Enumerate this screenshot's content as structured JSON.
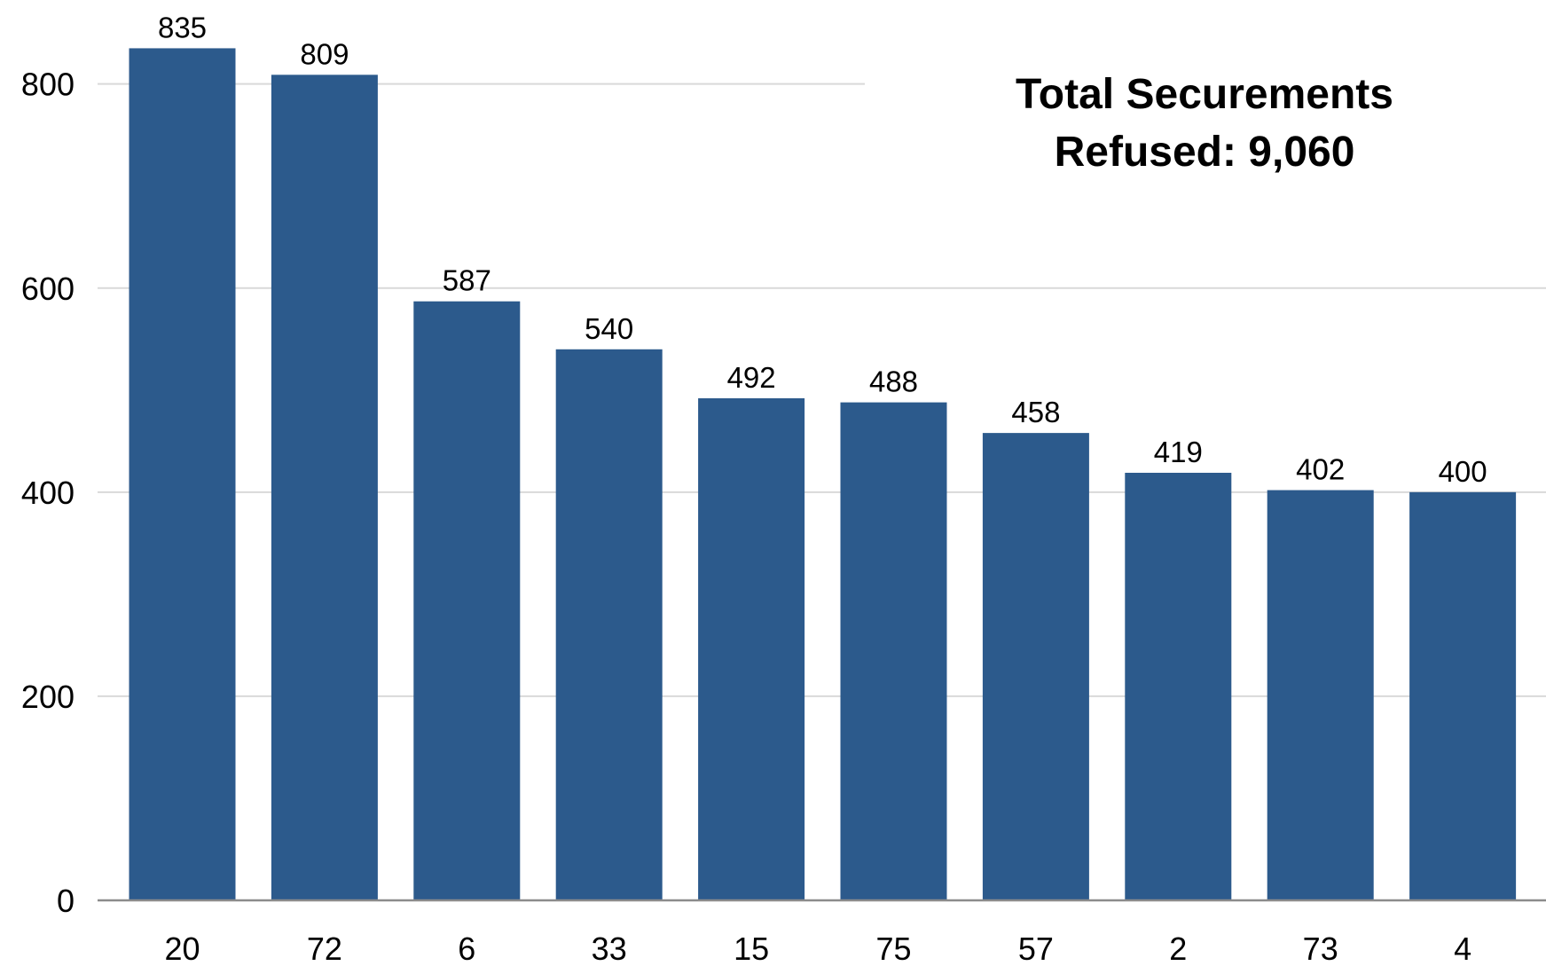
{
  "chart_data": {
    "type": "bar",
    "title": "",
    "xlabel": "",
    "ylabel": "",
    "categories": [
      "20",
      "72",
      "6",
      "33",
      "15",
      "75",
      "57",
      "2",
      "73",
      "4"
    ],
    "values": [
      835,
      809,
      587,
      540,
      492,
      488,
      458,
      419,
      402,
      400
    ],
    "data_labels": [
      "835",
      "809",
      "587",
      "540",
      "492",
      "488",
      "458",
      "419",
      "402",
      "400"
    ],
    "ylim": [
      0,
      900
    ],
    "yticks": [
      0,
      200,
      400,
      600,
      800
    ],
    "ytick_labels": [
      "0",
      "200",
      "400",
      "600",
      "800"
    ],
    "grid": true,
    "legend": "none",
    "annotation": {
      "line1": "Total Securements",
      "line2": "Refused: 9,060"
    },
    "colors": {
      "bar": "#2c5a8c",
      "grid": "#d9d9d9",
      "axis": "#8c8c8c"
    }
  }
}
